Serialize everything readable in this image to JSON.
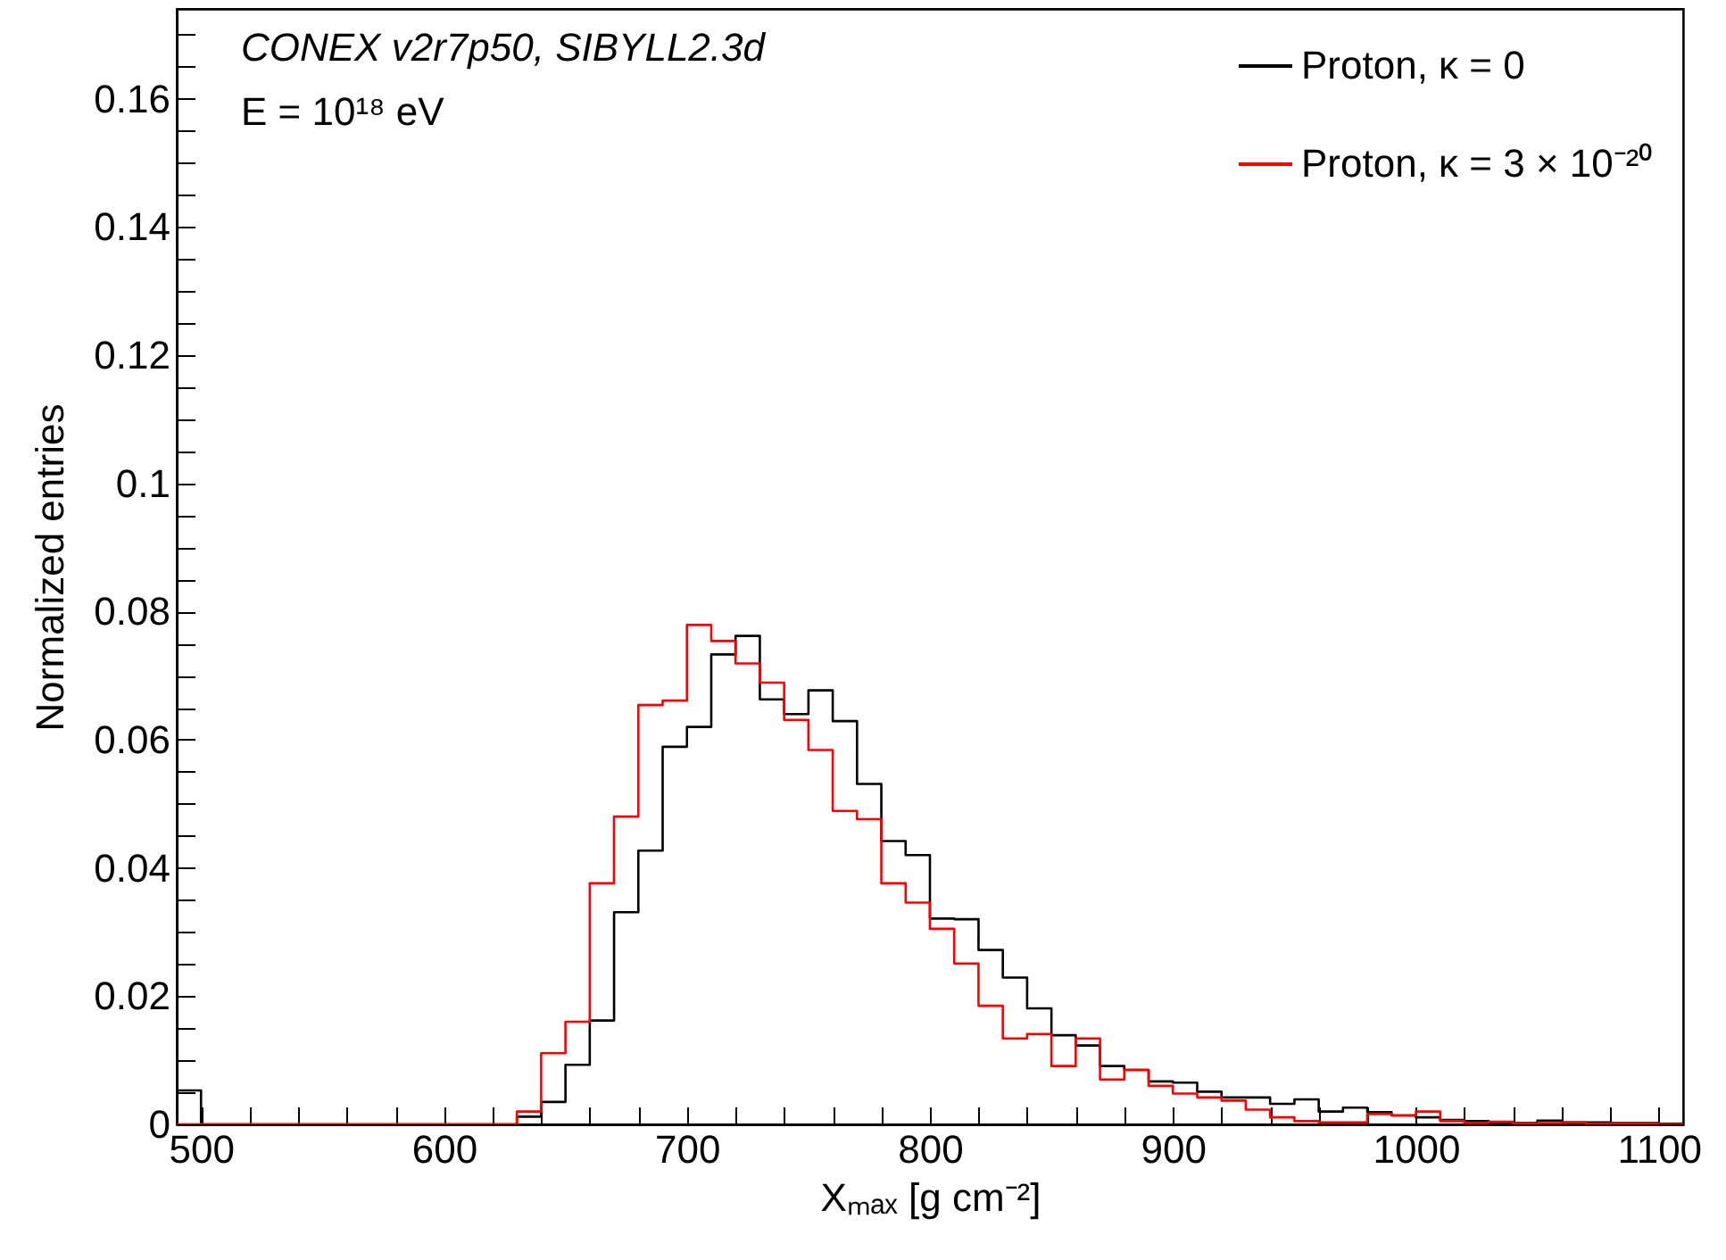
{
  "chart_data": {
    "type": "histogram",
    "xlabel": "Xₘₐₓ [g cm⁻²]",
    "ylabel": "Normalized entries",
    "annotations": [
      "CONEX v2r7p50, SIBYLL2.3d",
      "E = 10¹⁸ eV"
    ],
    "legend": "top right",
    "grid": false,
    "xlim": [
      490,
      1110
    ],
    "ylim": [
      0,
      0.174
    ],
    "xticks": [
      500,
      {
        "value": 520,
        "label": null
      },
      {
        "value": 540,
        "label": null
      },
      {
        "value": 560,
        "label": null
      },
      {
        "value": 580,
        "label": null
      },
      600,
      {
        "value": 620,
        "label": null
      },
      {
        "value": 640,
        "label": null
      },
      {
        "value": 660,
        "label": null
      },
      {
        "value": 680,
        "label": null
      },
      700,
      {
        "value": 720,
        "label": null
      },
      {
        "value": 740,
        "label": null
      },
      {
        "value": 760,
        "label": null
      },
      {
        "value": 780,
        "label": null
      },
      800,
      {
        "value": 820,
        "label": null
      },
      {
        "value": 840,
        "label": null
      },
      {
        "value": 860,
        "label": null
      },
      {
        "value": 880,
        "label": null
      },
      900,
      {
        "value": 920,
        "label": null
      },
      {
        "value": 940,
        "label": null
      },
      {
        "value": 960,
        "label": null
      },
      {
        "value": 980,
        "label": null
      },
      1000,
      {
        "value": 1020,
        "label": null
      },
      {
        "value": 1040,
        "label": null
      },
      {
        "value": 1060,
        "label": null
      },
      {
        "value": 1080,
        "label": null
      },
      1100
    ],
    "yticks": [
      0,
      {
        "value": 0.005,
        "label": null
      },
      0.02,
      {
        "value": 0.01,
        "label": null
      },
      {
        "value": 0.015,
        "label": null
      },
      {
        "value": 0.025,
        "label": null
      },
      {
        "value": 0.03,
        "label": null
      },
      {
        "value": 0.035,
        "label": null
      },
      0.04,
      {
        "value": 0.045,
        "label": null
      },
      {
        "value": 0.05,
        "label": null
      },
      {
        "value": 0.055,
        "label": null
      },
      0.06,
      {
        "value": 0.065,
        "label": null
      },
      {
        "value": 0.07,
        "label": null
      },
      {
        "value": 0.075,
        "label": null
      },
      0.08,
      {
        "value": 0.085,
        "label": null
      },
      {
        "value": 0.09,
        "label": null
      },
      {
        "value": 0.095,
        "label": null
      },
      0.1,
      {
        "value": 0.105,
        "label": null
      },
      {
        "value": 0.11,
        "label": null
      },
      {
        "value": 0.115,
        "label": null
      },
      0.12,
      {
        "value": 0.125,
        "label": null
      },
      {
        "value": 0.13,
        "label": null
      },
      {
        "value": 0.135,
        "label": null
      },
      0.14,
      {
        "value": 0.145,
        "label": null
      },
      {
        "value": 0.15,
        "label": null
      },
      {
        "value": 0.155,
        "label": null
      },
      0.16,
      {
        "value": 0.165,
        "label": null
      },
      {
        "value": 0.17,
        "label": null
      }
    ],
    "bins": [
      490,
      500,
      510,
      520,
      530,
      540,
      550,
      560,
      570,
      580,
      590,
      600,
      610,
      620,
      630,
      640,
      650,
      660,
      670,
      680,
      690,
      700,
      710,
      720,
      730,
      740,
      750,
      760,
      770,
      780,
      790,
      800,
      810,
      820,
      830,
      840,
      850,
      860,
      870,
      880,
      890,
      900,
      910,
      920,
      930,
      940,
      950,
      960,
      970,
      980,
      990,
      1000,
      1010,
      1020,
      1030,
      1040,
      1050,
      1060,
      1070,
      1080,
      1090,
      1100,
      1110
    ],
    "series": [
      {
        "name": "Proton, κ = 0",
        "color": "#000000",
        "values": [
          0.0053,
          0,
          0,
          0,
          0,
          0,
          0,
          0,
          0,
          0,
          0,
          0,
          0,
          0,
          0.0012,
          0.0035,
          0.0093,
          0.0162,
          0.0331,
          0.0427,
          0.0589,
          0.062,
          0.0733,
          0.0762,
          0.0663,
          0.064,
          0.0677,
          0.0629,
          0.0531,
          0.0442,
          0.042,
          0.0321,
          0.032,
          0.0272,
          0.0229,
          0.0181,
          0.0139,
          0.0123,
          0.0091,
          0.0085,
          0.0067,
          0.0065,
          0.0051,
          0.0042,
          0.0042,
          0.0032,
          0.0039,
          0.002,
          0.0026,
          0.0019,
          0.0014,
          0.0011,
          0.0007,
          0.0005,
          0.0002,
          0.0002,
          0.0006,
          0.0003,
          0.0003,
          0.0002,
          0.0002,
          0.0001
        ]
      },
      {
        "name": "Proton, κ = 3 × 10⁻²⁰",
        "color": "#ff0000",
        "values": [
          0,
          0,
          0,
          0,
          0,
          0,
          0,
          0,
          0,
          0,
          0,
          0,
          0,
          0,
          0.002,
          0.0111,
          0.016,
          0.0376,
          0.048,
          0.0654,
          0.0661,
          0.0779,
          0.0754,
          0.0719,
          0.0689,
          0.0631,
          0.0584,
          0.0489,
          0.0476,
          0.0376,
          0.0346,
          0.0305,
          0.0251,
          0.0185,
          0.0134,
          0.0141,
          0.0091,
          0.0134,
          0.007,
          0.0085,
          0.006,
          0.0048,
          0.0042,
          0.0037,
          0.0023,
          0.0011,
          0.0005,
          0.0003,
          0.0003,
          0.0016,
          0.0014,
          0.002,
          0.0005,
          0.0002,
          0.0004,
          0.0001,
          0.0002,
          0.0003,
          0.0001,
          0.0001,
          0.0001,
          0
        ]
      }
    ]
  }
}
